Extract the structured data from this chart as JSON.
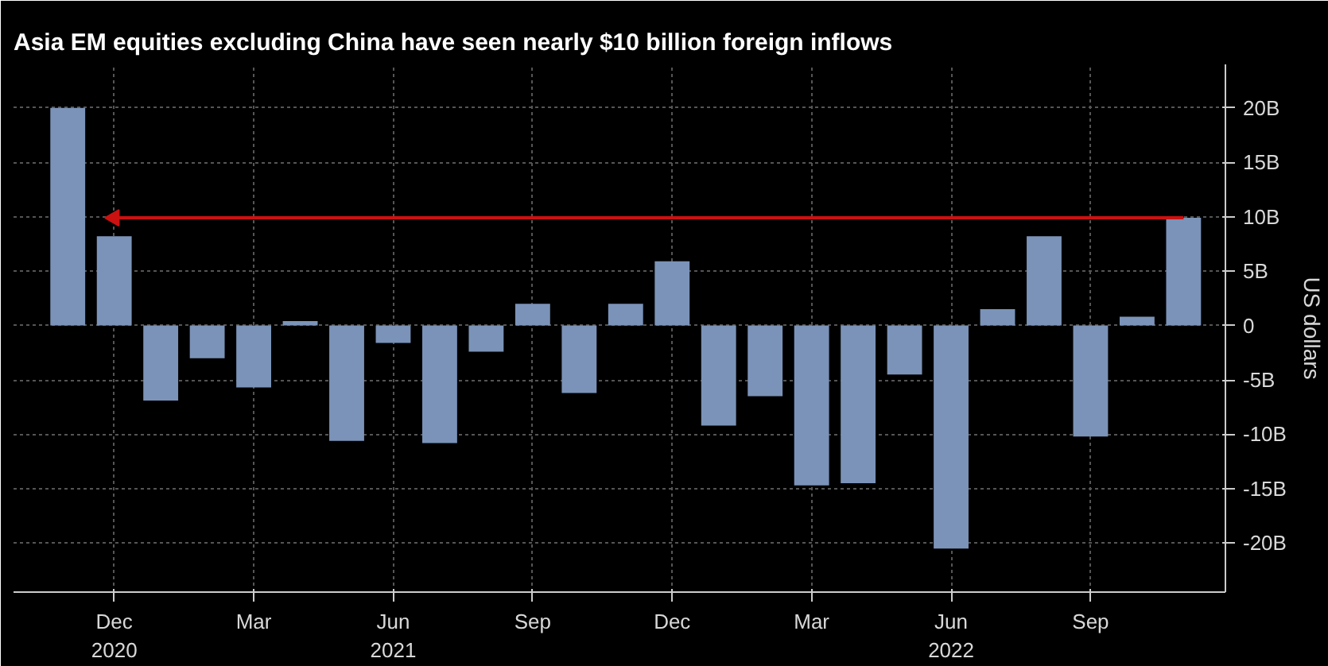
{
  "chart_data": {
    "type": "bar",
    "title": "Asia EM equities excluding China have seen nearly $10 billion foreign inflows",
    "ylabel": "US dollars",
    "x": [
      "2020-11",
      "2020-12",
      "2021-01",
      "2021-02",
      "2021-03",
      "2021-04",
      "2021-05",
      "2021-06",
      "2021-07",
      "2021-08",
      "2021-09",
      "2021-10",
      "2021-11",
      "2021-12",
      "2022-01",
      "2022-02",
      "2022-03",
      "2022-04",
      "2022-05",
      "2022-06",
      "2022-07",
      "2022-08",
      "2022-09",
      "2022-10",
      "2022-11"
    ],
    "series": [
      {
        "color": "#7b93b8",
        "values": [
          20,
          8.2,
          -6.9,
          -3,
          -5.7,
          0.4,
          -10.6,
          -1.6,
          -10.8,
          -2.4,
          2,
          -6.2,
          2,
          5.9,
          -9.2,
          -6.5,
          -14.7,
          -14.5,
          -4.5,
          -20.5,
          1.5,
          8.2,
          -10.2,
          0.8,
          9.9
        ]
      },
      {
        "type": "line",
        "color": "#cc1111",
        "x": [
          "2020-12",
          "2022-11"
        ],
        "values": [
          9.9,
          9.9
        ]
      }
    ],
    "xlim": [
      "2020-09-26",
      "2022-11-28"
    ],
    "xticks": [
      {
        "value": "2020-12",
        "label": "Dec\n2020"
      },
      {
        "value": "2021-03",
        "label": "Mar"
      },
      {
        "value": "2021-06",
        "label": "Jun\n2021"
      },
      {
        "value": "2021-09",
        "label": "Sep"
      },
      {
        "value": "2021-12",
        "label": "Dec"
      },
      {
        "value": "2022-03",
        "label": "Mar"
      },
      {
        "value": "2022-06",
        "label": "Jun\n2022"
      },
      {
        "value": "2022-09",
        "label": "Sep"
      }
    ],
    "ylim": [
      -24.5,
      24
    ],
    "yticks": [
      {
        "value": 20,
        "label": "20B"
      },
      {
        "value": 15,
        "label": "15B"
      },
      {
        "value": 10,
        "label": "10B"
      },
      {
        "value": 5,
        "label": "5B"
      },
      0,
      {
        "value": -5,
        "label": "-5B"
      },
      {
        "value": -10,
        "label": "-10B"
      },
      {
        "value": -15,
        "label": "-15B"
      },
      {
        "value": -20,
        "label": "-20B"
      }
    ],
    "grid": true
  }
}
